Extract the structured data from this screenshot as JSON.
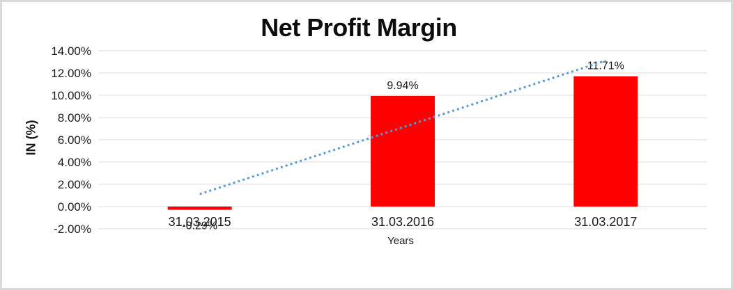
{
  "chart_data": {
    "type": "bar",
    "title": "Net Profit Margin",
    "xlabel": "Years",
    "ylabel": "IN (%)",
    "categories": [
      "31.03.2015",
      "31.03.2016",
      "31.03.2017"
    ],
    "values": [
      -0.29,
      9.94,
      11.71
    ],
    "data_labels": [
      "-0.29%",
      "9.94%",
      "11.71%"
    ],
    "ylim": [
      -2,
      14
    ],
    "ytick_step": 2,
    "yticks": [
      {
        "value": 14,
        "label": "14.00%"
      },
      {
        "value": 12,
        "label": "12.00%"
      },
      {
        "value": 10,
        "label": "10.00%"
      },
      {
        "value": 8,
        "label": "8.00%"
      },
      {
        "value": 6,
        "label": "6.00%"
      },
      {
        "value": 4,
        "label": "4.00%"
      },
      {
        "value": 2,
        "label": "2.00%"
      },
      {
        "value": 0,
        "label": "0.00%"
      },
      {
        "value": -2,
        "label": "-2.00%"
      }
    ],
    "grid": "horizontal",
    "legend": "none",
    "bar_color": "#ff0000",
    "gridline_color": "#d9d9d9",
    "text_color": "#1a1a1a",
    "background_color": "#ffffff",
    "frame_border_color": "#d9d9d9",
    "trendline": {
      "type": "linear",
      "style": "dotted",
      "color": "#5b9bd5",
      "endpoints_percent": [
        1.12,
        13.12
      ]
    }
  }
}
